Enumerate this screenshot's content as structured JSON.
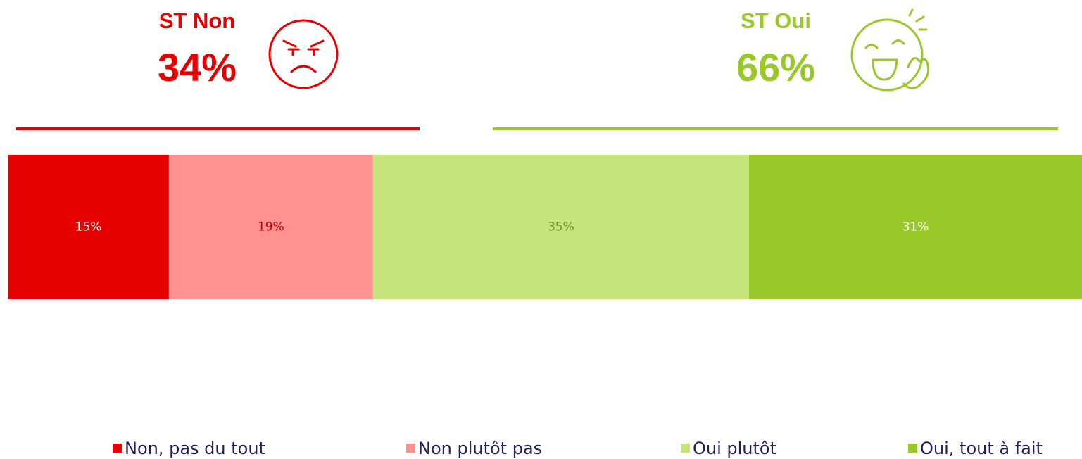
{
  "chart_data": {
    "type": "stacked_bar_100",
    "orientation": "horizontal",
    "categories": [
      null
    ],
    "xlim": [
      0,
      100
    ],
    "series": [
      {
        "name": "Non, pas du tout",
        "color": "#e60000",
        "label_color": "#ffffff",
        "values": [
          15
        ],
        "value_labels": [
          "15%"
        ]
      },
      {
        "name": "Non plutôt pas",
        "color": "#ff9191",
        "label_color": "#c00000",
        "values": [
          19
        ],
        "value_labels": [
          "19%"
        ]
      },
      {
        "name": "Oui plutôt",
        "color": "#c5e47c",
        "label_color": "#6e9422",
        "values": [
          35
        ],
        "value_labels": [
          "35%"
        ]
      },
      {
        "name": "Oui, tout à fait",
        "color": "#99c928",
        "label_color": "#ffffff",
        "values": [
          31
        ],
        "value_labels": [
          "31%"
        ]
      }
    ],
    "annotations": [
      {
        "label": "ST Non",
        "value": 34,
        "value_label": "34%",
        "color": "#e60000"
      },
      {
        "label": "ST Oui",
        "value": 66,
        "value_label": "66%",
        "color": "#99c928"
      }
    ],
    "legend": "bottom"
  }
}
